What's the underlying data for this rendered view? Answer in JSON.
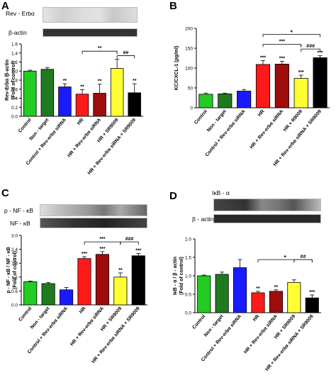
{
  "panels": {
    "A": {
      "letter": "A",
      "blot_top": "Rev - Erbα",
      "blot_bottom": "β-actin"
    },
    "B": {
      "letter": "B"
    },
    "C": {
      "letter": "C",
      "blot_top": "p - NF - κB",
      "blot_bottom": "NF - κB"
    },
    "D": {
      "letter": "D",
      "blot_top": "IκB - α",
      "blot_bottom": "β - actin"
    }
  },
  "colors": [
    "#22cc22",
    "#1f7a1f",
    "#1a1aff",
    "#ff1a1a",
    "#9e0c0c",
    "#ffff33",
    "#000000"
  ],
  "chart_data": [
    {
      "panel": "A",
      "type": "bar",
      "categories": [
        "Control",
        "Non - target",
        "Control + Rev-erbα siRNA",
        "HR",
        "HR + Rev-erbα siRNA",
        "HR + SR9009",
        "HR + Rev-erbα siRNA + SR9009"
      ],
      "values": [
        1.0,
        1.04,
        0.65,
        0.49,
        0.51,
        1.06,
        0.52
      ],
      "errors": [
        0.02,
        0.04,
        0.07,
        0.1,
        0.2,
        0.2,
        0.2
      ],
      "labels": [
        "",
        "",
        "**",
        "**",
        "**",
        "",
        "**"
      ],
      "ylabel_line1": "Rev-Erbα /β-actin",
      "ylabel_line2": "(Fold of control)",
      "ylim": [
        0,
        1.6
      ],
      "yticks": [
        "0.0",
        "0.2",
        "0.4",
        "0.6",
        "0.8",
        "1.0",
        "1.2",
        "1.4",
        "1.6"
      ],
      "brackets": [
        {
          "from": 3,
          "to": 5,
          "mid": 5,
          "text": "**",
          "level": 1.44
        },
        {
          "from": 5,
          "to": 6,
          "text": "##",
          "level": 1.34
        }
      ]
    },
    {
      "panel": "B",
      "type": "bar",
      "categories": [
        "Control",
        "Non - target",
        "Control + Rev-erbα siRNA",
        "HR",
        "HR + Rev-erbα siRNA",
        "HR + R9009",
        "HR + Rev-erbα siRNA + SR9009"
      ],
      "values": [
        34,
        35,
        42,
        109,
        110,
        74,
        126
      ],
      "errors": [
        3,
        2,
        4,
        10,
        7,
        8,
        5
      ],
      "labels": [
        "",
        "",
        "",
        "***",
        "***",
        "***",
        "***"
      ],
      "ylabel_line1": "KC/CXCL-1 (pg/ml)",
      "ylabel_line2": "",
      "ylim": [
        0,
        200
      ],
      "yticks": [
        "0",
        "50",
        "100",
        "150",
        "200"
      ],
      "brackets": [
        {
          "from": 3,
          "to": 6,
          "text": "+",
          "level": 185
        },
        {
          "from": 3,
          "to": 5,
          "mid": 5,
          "text": "***",
          "level": 160
        },
        {
          "from": 5,
          "to": 6,
          "text": "###",
          "level": 148
        }
      ]
    },
    {
      "panel": "C",
      "type": "bar",
      "categories": [
        "Control",
        "Non - target",
        "Control + Rev-erbα siRNA",
        "HR",
        "HR + Rev-erbα siRNA",
        "HR + SR9009",
        "HR + Rev-erbα siRNA + SR9009"
      ],
      "values": [
        1.0,
        0.92,
        0.65,
        2.0,
        2.18,
        1.2,
        2.12
      ],
      "errors": [
        0.03,
        0.05,
        0.1,
        0.08,
        0.12,
        0.18,
        0.1
      ],
      "labels": [
        "",
        "",
        "",
        "***",
        "***",
        "**",
        "***"
      ],
      "ylabel_line1": "p - NF - κB / NF - κB",
      "ylabel_line2": "(Fold of control)",
      "ylim": [
        0,
        3.0
      ],
      "yticks": [
        "0.0",
        "0.6",
        "1.2",
        "1.8",
        "2.4",
        "3.0"
      ],
      "brackets": [
        {
          "from": 3,
          "to": 5,
          "mid": 5,
          "text": "***",
          "level": 2.72
        },
        {
          "from": 5,
          "to": 6,
          "text": "###",
          "level": 2.72
        }
      ]
    },
    {
      "panel": "D",
      "type": "bar",
      "categories": [
        "Control",
        "Non - target",
        "Control + Rev-erbα siRNA",
        "HR",
        "HR + Rev-erbα siRNA",
        "HR + SR9009",
        "HR + Rev-erbα siRNA + SR9009"
      ],
      "values": [
        1.0,
        1.04,
        1.22,
        0.54,
        0.58,
        0.82,
        0.4
      ],
      "errors": [
        0.02,
        0.06,
        0.22,
        0.04,
        0.04,
        0.07,
        0.08
      ],
      "labels": [
        "",
        "",
        "",
        "**",
        "**",
        "",
        "***"
      ],
      "ylabel_line1": "IκB - α / β - actin",
      "ylabel_line2": "(Fold of control)",
      "ylim": [
        0,
        2.0
      ],
      "yticks": [
        "0.0",
        "0.5",
        "1.0",
        "1.5",
        "2.0"
      ],
      "brackets": [
        {
          "from": 3,
          "to": 6,
          "mid": 5,
          "text": "+",
          "level": 1.44
        },
        {
          "from": 5,
          "to": 6,
          "text": "##",
          "level": 1.44
        }
      ]
    }
  ]
}
